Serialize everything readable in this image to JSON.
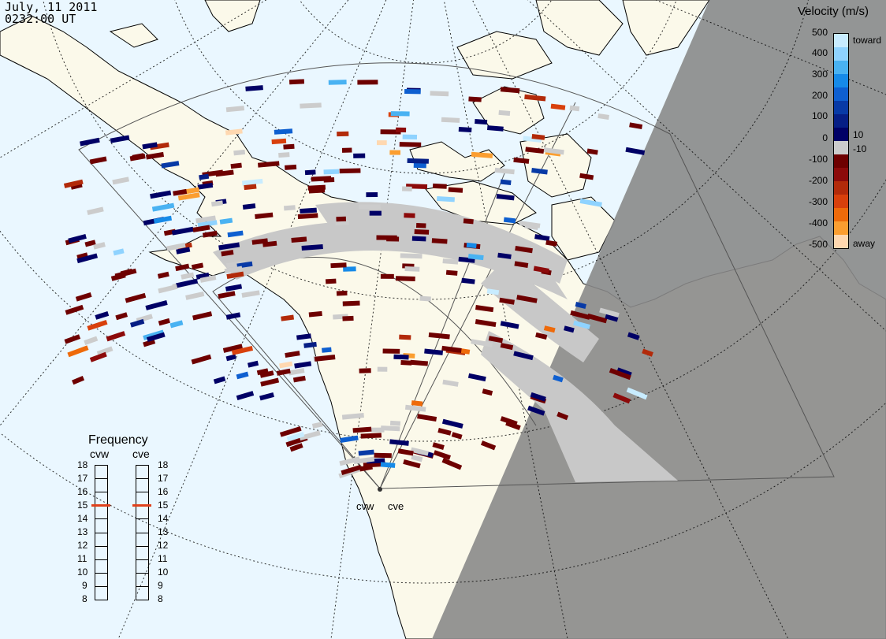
{
  "header": {
    "date": "July, 11 2011",
    "time": "0232:00 UT"
  },
  "legend": {
    "title": "Velocity (m/s)",
    "ticks": [
      "500",
      "400",
      "300",
      "200",
      "100",
      "10",
      "0",
      "-10",
      "-100",
      "-200",
      "-300",
      "-400",
      "-500"
    ],
    "toward_label": "toward",
    "away_label": "away",
    "colors": [
      "#c8ecff",
      "#8fd3ff",
      "#49b2f2",
      "#168ae8",
      "#0e5fd0",
      "#083aa6",
      "#061e85",
      "#000066",
      "#cccccc",
      "#6e0000",
      "#8c0a0a",
      "#b22a0a",
      "#d8400c",
      "#ee6a0a",
      "#fb9e30",
      "#ffd8b0"
    ]
  },
  "frequency": {
    "title": "Frequency",
    "radars": [
      "cvw",
      "cve"
    ],
    "scale": [
      "8",
      "9",
      "10",
      "11",
      "12",
      "13",
      "14",
      "15",
      "16",
      "17",
      "18"
    ],
    "current_mhz": [
      15,
      15
    ]
  },
  "map": {
    "radar_labels": [
      "cvw",
      "cve"
    ]
  }
}
